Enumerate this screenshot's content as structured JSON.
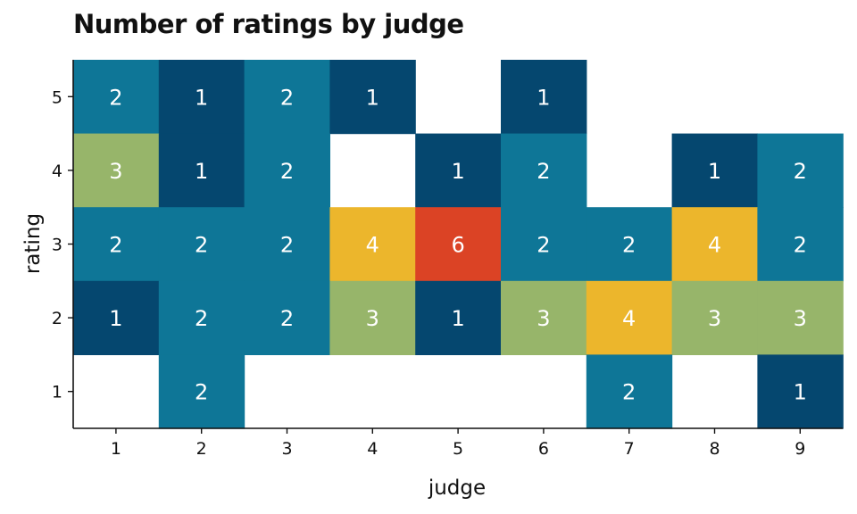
{
  "chart_data": {
    "type": "heatmap",
    "title": "Number of ratings by judge",
    "xlabel": "judge",
    "ylabel": "rating",
    "x_categories": [
      "1",
      "2",
      "3",
      "4",
      "5",
      "6",
      "7",
      "8",
      "9"
    ],
    "y_categories": [
      "1",
      "2",
      "3",
      "4",
      "5"
    ],
    "cells": [
      {
        "judge": 1,
        "rating": 5,
        "count": 2
      },
      {
        "judge": 2,
        "rating": 5,
        "count": 1
      },
      {
        "judge": 3,
        "rating": 5,
        "count": 2
      },
      {
        "judge": 4,
        "rating": 5,
        "count": 1
      },
      {
        "judge": 6,
        "rating": 5,
        "count": 1
      },
      {
        "judge": 1,
        "rating": 4,
        "count": 3
      },
      {
        "judge": 2,
        "rating": 4,
        "count": 1
      },
      {
        "judge": 3,
        "rating": 4,
        "count": 2
      },
      {
        "judge": 5,
        "rating": 4,
        "count": 1
      },
      {
        "judge": 6,
        "rating": 4,
        "count": 2
      },
      {
        "judge": 8,
        "rating": 4,
        "count": 1
      },
      {
        "judge": 9,
        "rating": 4,
        "count": 2
      },
      {
        "judge": 1,
        "rating": 3,
        "count": 2
      },
      {
        "judge": 2,
        "rating": 3,
        "count": 2
      },
      {
        "judge": 3,
        "rating": 3,
        "count": 2
      },
      {
        "judge": 4,
        "rating": 3,
        "count": 4
      },
      {
        "judge": 5,
        "rating": 3,
        "count": 6
      },
      {
        "judge": 6,
        "rating": 3,
        "count": 2
      },
      {
        "judge": 7,
        "rating": 3,
        "count": 2
      },
      {
        "judge": 8,
        "rating": 3,
        "count": 4
      },
      {
        "judge": 9,
        "rating": 3,
        "count": 2
      },
      {
        "judge": 1,
        "rating": 2,
        "count": 1
      },
      {
        "judge": 2,
        "rating": 2,
        "count": 2
      },
      {
        "judge": 3,
        "rating": 2,
        "count": 2
      },
      {
        "judge": 4,
        "rating": 2,
        "count": 3
      },
      {
        "judge": 5,
        "rating": 2,
        "count": 1
      },
      {
        "judge": 6,
        "rating": 2,
        "count": 3
      },
      {
        "judge": 7,
        "rating": 2,
        "count": 4
      },
      {
        "judge": 8,
        "rating": 2,
        "count": 3
      },
      {
        "judge": 9,
        "rating": 2,
        "count": 3
      },
      {
        "judge": 2,
        "rating": 1,
        "count": 2
      },
      {
        "judge": 7,
        "rating": 1,
        "count": 2
      },
      {
        "judge": 9,
        "rating": 1,
        "count": 1
      }
    ],
    "color_map": {
      "1": "#05476f",
      "2": "#0e7697",
      "3": "#97b56a",
      "4": "#ecb62c",
      "6": "#db4325"
    },
    "label_color": "#ffffff",
    "grid": false,
    "legend": "none"
  }
}
